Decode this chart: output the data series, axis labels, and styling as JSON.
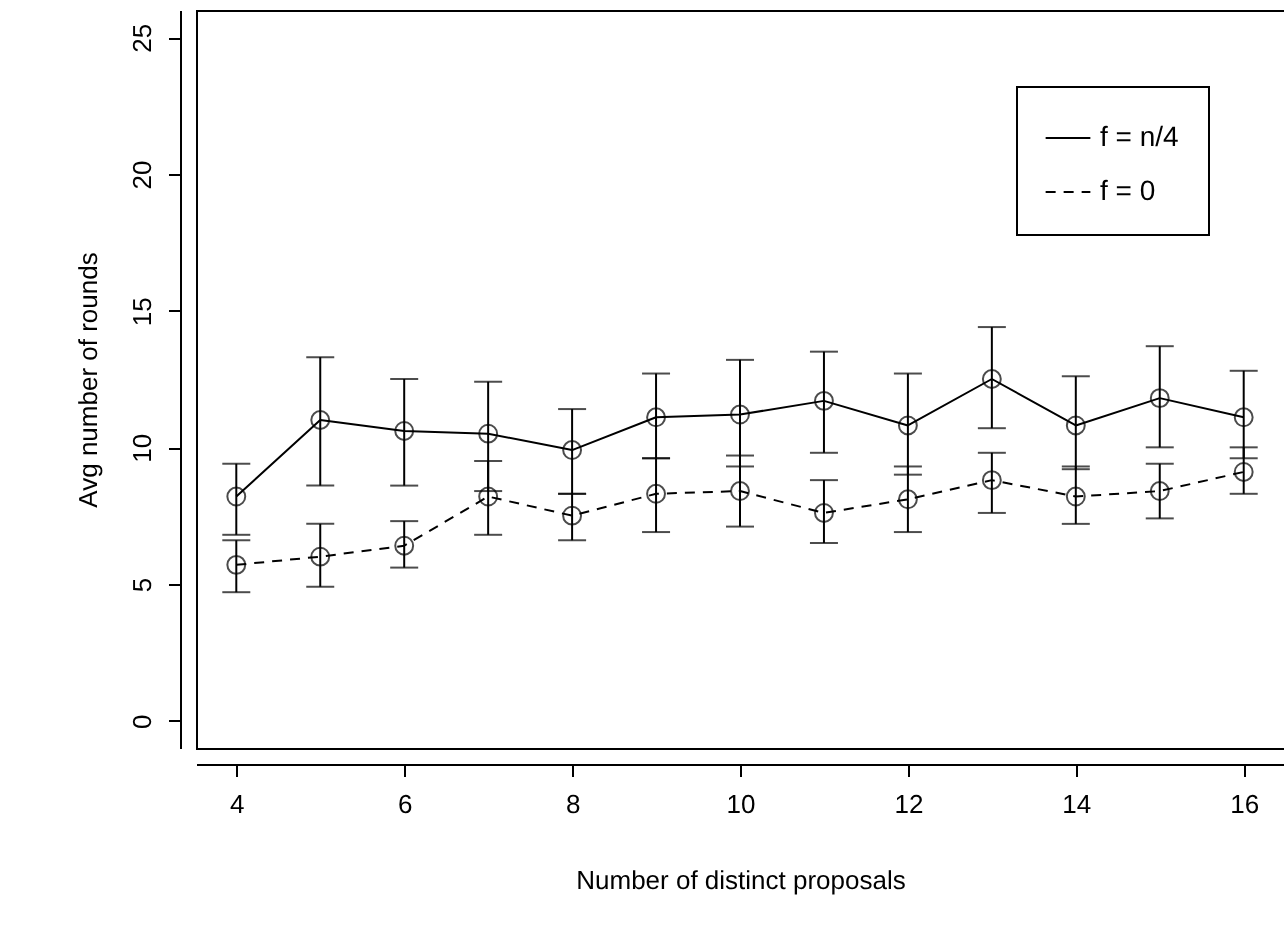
{
  "chart_data": {
    "type": "line",
    "xlabel": "Number of distinct proposals",
    "ylabel": "Avg number of rounds",
    "x": [
      4,
      5,
      6,
      7,
      8,
      9,
      10,
      11,
      12,
      13,
      14,
      15,
      16
    ],
    "xlim": [
      3.52,
      16.48
    ],
    "ylim": [
      -1,
      26
    ],
    "xticks": [
      4,
      6,
      8,
      10,
      12,
      14,
      16
    ],
    "yticks": [
      0,
      5,
      10,
      15,
      20,
      25
    ],
    "grid": false,
    "legend": "top right",
    "marker": "circle",
    "series": [
      {
        "name": "f = n/4",
        "color": "#000000",
        "line_style": "solid",
        "values": [
          8.2,
          11.0,
          10.6,
          10.5,
          9.9,
          11.1,
          11.2,
          11.7,
          10.8,
          12.5,
          10.8,
          11.8,
          11.1
        ],
        "errors": [
          [
            6.8,
            9.4
          ],
          [
            8.6,
            13.3
          ],
          [
            8.6,
            12.5
          ],
          [
            8.4,
            12.4
          ],
          [
            8.3,
            11.4
          ],
          [
            9.6,
            12.7
          ],
          [
            9.3,
            13.2
          ],
          [
            9.8,
            13.5
          ],
          [
            9.0,
            12.7
          ],
          [
            10.7,
            14.4
          ],
          [
            9.2,
            12.6
          ],
          [
            10.0,
            13.7
          ],
          [
            9.6,
            12.8
          ]
        ]
      },
      {
        "name": "f = 0",
        "color": "#000000",
        "line_style": "dashed",
        "values": [
          5.7,
          6.0,
          6.4,
          8.2,
          7.5,
          8.3,
          8.4,
          7.6,
          8.1,
          8.8,
          8.2,
          8.4,
          9.1
        ],
        "errors": [
          [
            4.7,
            6.6
          ],
          [
            4.9,
            7.2
          ],
          [
            5.6,
            7.3
          ],
          [
            6.8,
            9.5
          ],
          [
            6.6,
            8.3
          ],
          [
            6.9,
            9.6
          ],
          [
            7.1,
            9.7
          ],
          [
            6.5,
            8.8
          ],
          [
            6.9,
            9.3
          ],
          [
            7.6,
            9.8
          ],
          [
            7.2,
            9.3
          ],
          [
            7.4,
            9.4
          ],
          [
            8.3,
            10.0
          ]
        ]
      }
    ]
  }
}
